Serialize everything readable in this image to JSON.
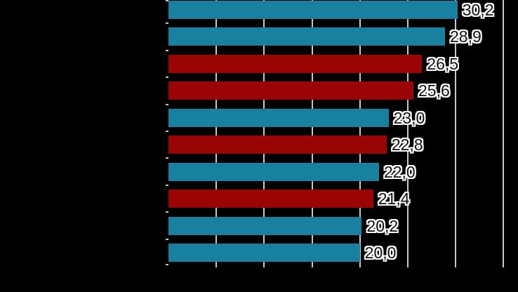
{
  "chart_data": {
    "type": "bar",
    "orientation": "horizontal",
    "title": "",
    "categories": [
      "",
      "",
      "",
      "",
      "",
      "",
      "",
      "",
      "",
      ""
    ],
    "values": [
      30.2,
      28.9,
      26.5,
      25.6,
      23.0,
      22.8,
      22.0,
      21.4,
      20.2,
      20.0
    ],
    "value_labels": [
      "30,2",
      "28,9",
      "26,5",
      "25,6",
      "23,0",
      "22,8",
      "22,0",
      "21,4",
      "20,2",
      "20,0"
    ],
    "bar_color_keys": [
      "teal",
      "teal",
      "red",
      "red",
      "teal",
      "red",
      "teal",
      "red",
      "teal",
      "teal"
    ],
    "colors": {
      "teal": "#17819F",
      "red": "#9B0404"
    },
    "xlim": [
      0,
      35
    ],
    "x_ticks": [
      0,
      5,
      10,
      15,
      20,
      25,
      30,
      35
    ],
    "gridline_values": [
      5,
      10,
      15,
      20,
      25,
      30,
      35
    ],
    "grid_on": true,
    "grid_color": "#C8C8CA",
    "value_label_color": "#111111",
    "value_label_halo": "#FFFFFF",
    "background_color": "#000000",
    "legend": null
  },
  "layout_note": "category and axis tick labels are rendered black-on-black (not visible)"
}
